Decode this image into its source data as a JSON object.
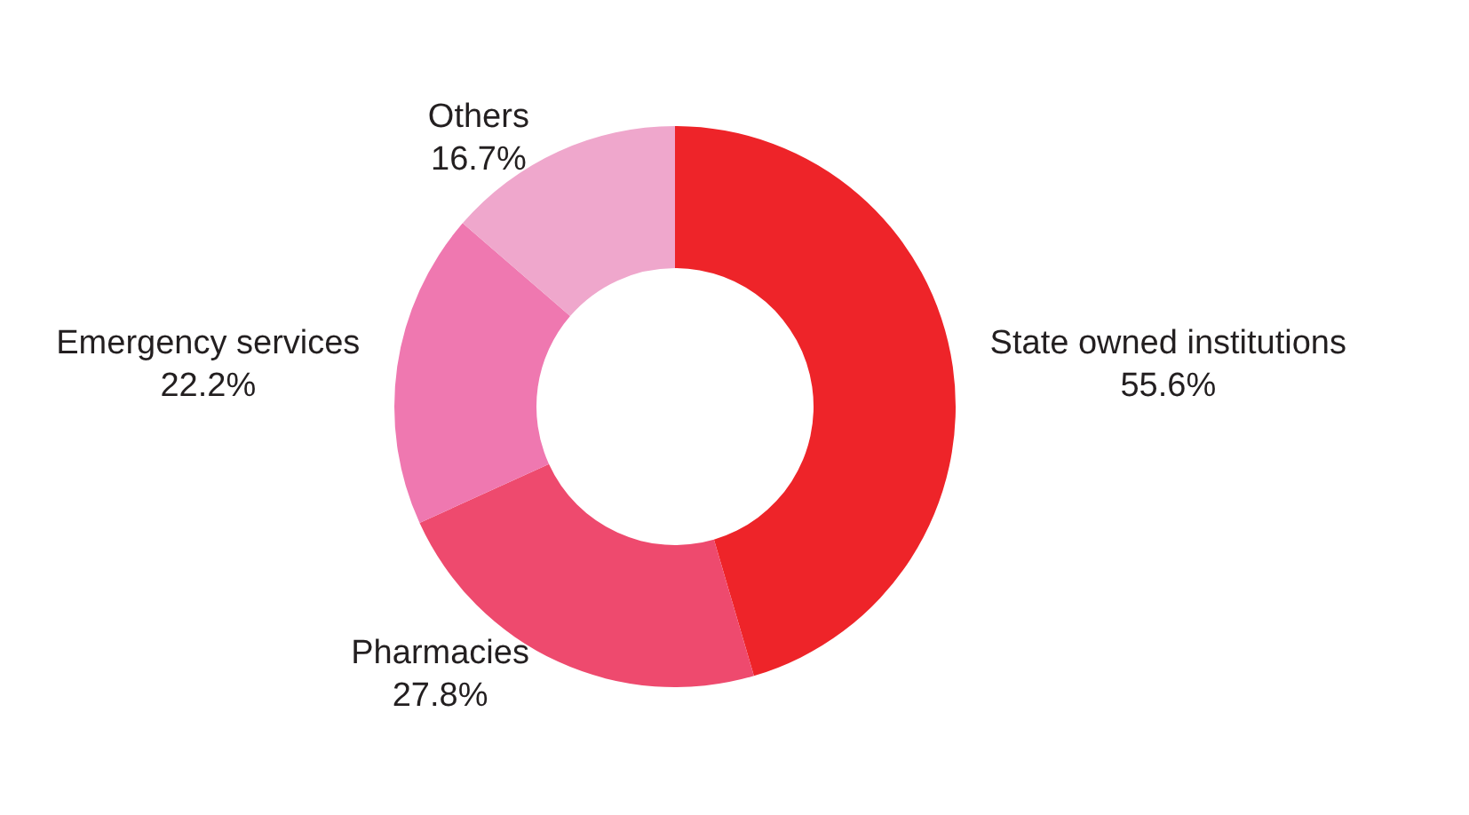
{
  "chart_data": {
    "type": "donut",
    "categories": [
      "State owned institutions",
      "Pharmacies",
      "Emergency services",
      "Others"
    ],
    "values": [
      55.6,
      27.8,
      22.2,
      16.7
    ],
    "value_labels": [
      "55.6%",
      "27.8%",
      "22.2%",
      "16.7%"
    ],
    "colors": [
      "#ee2429",
      "#ee4a6e",
      "#ef78b0",
      "#efa7cc"
    ],
    "legend": false
  }
}
